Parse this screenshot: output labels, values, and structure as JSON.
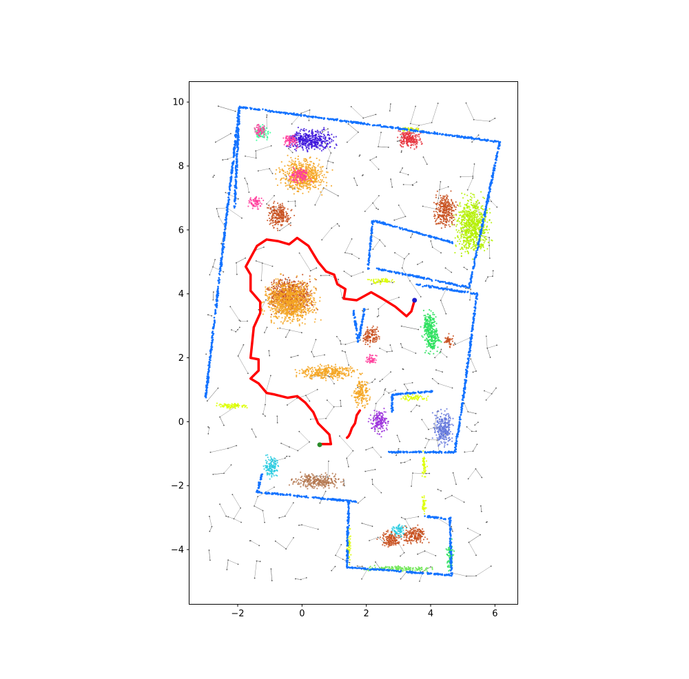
{
  "chart_data": {
    "type": "scatter",
    "title": "",
    "xlabel": "",
    "ylabel": "",
    "xlim": [
      -3.5,
      6.7
    ],
    "ylim": [
      -5.7,
      10.65
    ],
    "xticks": [
      -2,
      0,
      2,
      4,
      6
    ],
    "yticks": [
      -4,
      -2,
      0,
      2,
      4,
      6,
      8,
      10
    ],
    "xtick_labels": [
      "−2",
      "0",
      "2",
      "4",
      "6"
    ],
    "ytick_labels": [
      "−4",
      "−2",
      "0",
      "2",
      "4",
      "6",
      "8",
      "10"
    ],
    "grid": false,
    "legend": "none",
    "colors": {
      "wall": "#1473ff",
      "path": "#ff0000",
      "graph": "#555555",
      "accent_yellow": "#ddff00",
      "accent_orange": "#f5a623",
      "accent_brown": "#c8501e",
      "accent_purple": "#3c14dc",
      "accent_pink": "#ff3c9b",
      "accent_green": "#28e15a",
      "accent_red": "#e6323c"
    },
    "series": [
      {
        "role": "planned-path",
        "color": "#ff0000",
        "x": [
          3.5,
          3.4,
          3.25,
          2.9,
          2.5,
          2.15,
          1.7,
          1.3,
          1.35,
          1.1,
          1.0,
          0.75,
          0.5,
          0.2,
          -0.15,
          -0.4,
          -0.75,
          -1.1,
          -1.4,
          -1.75,
          -1.6,
          -1.6,
          -1.3,
          -1.3,
          -1.5,
          -1.6,
          -1.35,
          -1.35,
          -1.6,
          -1.35,
          -1.1,
          -0.85,
          -0.45,
          -0.15,
          0.1,
          0.35,
          0.5,
          0.85,
          0.9,
          0.55
        ],
        "y": [
          3.8,
          3.45,
          3.3,
          3.6,
          3.85,
          4.05,
          3.8,
          3.85,
          4.15,
          4.3,
          4.6,
          4.7,
          5.0,
          5.5,
          5.75,
          5.55,
          5.65,
          5.7,
          5.5,
          4.85,
          4.6,
          4.1,
          3.75,
          3.4,
          2.95,
          2.0,
          1.95,
          1.6,
          1.35,
          1.2,
          0.9,
          0.85,
          0.75,
          0.8,
          0.6,
          0.3,
          -0.05,
          -0.4,
          -0.7,
          -0.7
        ]
      },
      {
        "role": "path-segment",
        "color": "#ff0000",
        "x": [
          1.8,
          1.7,
          1.65,
          1.55,
          1.5,
          1.45,
          1.4
        ],
        "y": [
          0.35,
          0.2,
          -0.05,
          -0.2,
          -0.35,
          -0.45,
          -0.5
        ]
      },
      {
        "role": "goal-marker",
        "color": "#1e1ecc",
        "x": [
          3.5
        ],
        "y": [
          3.8
        ]
      },
      {
        "role": "start-marker",
        "color": "#2a8c2a",
        "x": [
          0.55
        ],
        "y": [
          -0.72
        ]
      }
    ],
    "walls": [
      [
        [
          -1.95,
          9.85
        ],
        [
          -3.0,
          0.75
        ]
      ],
      [
        [
          -1.95,
          9.85
        ],
        [
          6.15,
          8.75
        ]
      ],
      [
        [
          6.15,
          8.75
        ],
        [
          5.2,
          4.2
        ]
      ],
      [
        [
          5.45,
          4.05
        ],
        [
          5.0,
          0.6
        ]
      ],
      [
        [
          5.0,
          0.6
        ],
        [
          4.75,
          -0.95
        ]
      ],
      [
        [
          4.75,
          -0.95
        ],
        [
          2.7,
          -0.95
        ]
      ],
      [
        [
          1.6,
          3.5
        ],
        [
          1.75,
          2.5
        ]
      ],
      [
        [
          1.75,
          2.5
        ],
        [
          1.95,
          3.55
        ]
      ],
      [
        [
          2.2,
          6.3
        ],
        [
          2.05,
          4.75
        ]
      ],
      [
        [
          2.2,
          6.3
        ],
        [
          4.7,
          5.6
        ]
      ],
      [
        [
          2.3,
          4.8
        ],
        [
          5.2,
          4.2
        ]
      ],
      [
        [
          3.55,
          4.3
        ],
        [
          5.4,
          4.0
        ]
      ],
      [
        [
          2.8,
          0.85
        ],
        [
          2.8,
          0.3
        ]
      ],
      [
        [
          2.8,
          0.85
        ],
        [
          4.05,
          0.95
        ]
      ],
      [
        [
          -1.25,
          -1.65
        ],
        [
          -1.4,
          -2.2
        ]
      ],
      [
        [
          -1.4,
          -2.2
        ],
        [
          1.7,
          -2.5
        ]
      ],
      [
        [
          1.45,
          -2.5
        ],
        [
          1.4,
          -4.55
        ]
      ],
      [
        [
          1.4,
          -4.55
        ],
        [
          4.65,
          -4.8
        ]
      ],
      [
        [
          4.65,
          -4.8
        ],
        [
          4.6,
          -3.0
        ]
      ],
      [
        [
          4.5,
          -3.05
        ],
        [
          3.8,
          -2.95
        ]
      ],
      [
        [
          -1.95,
          9.8
        ],
        [
          -2.1,
          6.7
        ]
      ]
    ],
    "object_clusters": [
      {
        "color": "#3cff9b",
        "x": -1.25,
        "y": 9.05,
        "rx": 0.3,
        "ry": 0.3
      },
      {
        "color": "#ff3c9b",
        "x": -1.3,
        "y": 9.1,
        "rx": 0.25,
        "ry": 0.25
      },
      {
        "color": "#3c14dc",
        "x": 0.25,
        "y": 8.8,
        "rx": 1.0,
        "ry": 0.45
      },
      {
        "color": "#ff3c9b",
        "x": -0.35,
        "y": 8.8,
        "rx": 0.3,
        "ry": 0.3
      },
      {
        "color": "#f5a623",
        "x": 0.05,
        "y": 7.7,
        "rx": 0.95,
        "ry": 0.7
      },
      {
        "color": "#ff3c9b",
        "x": -0.05,
        "y": 7.7,
        "rx": 0.4,
        "ry": 0.35
      },
      {
        "color": "#ff3c9b",
        "x": -1.45,
        "y": 6.85,
        "rx": 0.3,
        "ry": 0.25
      },
      {
        "color": "#c8501e",
        "x": -0.7,
        "y": 6.45,
        "rx": 0.5,
        "ry": 0.5
      },
      {
        "color": "#e6323c",
        "x": 3.35,
        "y": 8.85,
        "rx": 0.55,
        "ry": 0.4
      },
      {
        "color": "#c8501e",
        "x": 4.45,
        "y": 6.6,
        "rx": 0.45,
        "ry": 0.7
      },
      {
        "color": "#b4f000",
        "x": 5.3,
        "y": 6.15,
        "rx": 0.7,
        "ry": 1.2
      },
      {
        "color": "#c8501e",
        "x": -0.35,
        "y": 3.95,
        "rx": 0.95,
        "ry": 0.75
      },
      {
        "color": "#f5a623",
        "x": -0.35,
        "y": 3.75,
        "rx": 1.05,
        "ry": 0.9
      },
      {
        "color": "#c8501e",
        "x": 2.15,
        "y": 2.7,
        "rx": 0.35,
        "ry": 0.4
      },
      {
        "color": "#28e15a",
        "x": 4.05,
        "y": 2.55,
        "rx": 0.35,
        "ry": 0.55
      },
      {
        "color": "#c8501e",
        "x": 4.55,
        "y": 2.55,
        "rx": 0.2,
        "ry": 0.25
      },
      {
        "color": "#28e15a",
        "x": 3.95,
        "y": 3.1,
        "rx": 0.3,
        "ry": 0.5
      },
      {
        "color": "#f5a623",
        "x": 0.8,
        "y": 1.55,
        "rx": 1.3,
        "ry": 0.3
      },
      {
        "color": "#f5a623",
        "x": 1.85,
        "y": 0.9,
        "rx": 0.35,
        "ry": 0.55
      },
      {
        "color": "#ff3c9b",
        "x": 2.15,
        "y": 1.95,
        "rx": 0.25,
        "ry": 0.2
      },
      {
        "color": "#9b30dc",
        "x": 2.4,
        "y": 0.0,
        "rx": 0.35,
        "ry": 0.5
      },
      {
        "color": "#6478dc",
        "x": 4.4,
        "y": -0.2,
        "rx": 0.4,
        "ry": 0.75
      },
      {
        "color": "#2acbe0",
        "x": -0.95,
        "y": -1.4,
        "rx": 0.3,
        "ry": 0.5
      },
      {
        "color": "#b47850",
        "x": 0.5,
        "y": -1.85,
        "rx": 1.05,
        "ry": 0.3
      },
      {
        "color": "#c8501e",
        "x": 2.75,
        "y": -3.7,
        "rx": 0.45,
        "ry": 0.35
      },
      {
        "color": "#c8501e",
        "x": 3.5,
        "y": -3.55,
        "rx": 0.5,
        "ry": 0.4
      },
      {
        "color": "#2acbe0",
        "x": 3.0,
        "y": -3.4,
        "rx": 0.3,
        "ry": 0.25
      },
      {
        "color": "#ddff00",
        "x": -2.15,
        "y": 0.5,
        "rx": 0.75,
        "ry": 0.12
      },
      {
        "color": "#ddff00",
        "x": 2.5,
        "y": 4.4,
        "rx": 0.6,
        "ry": 0.1
      },
      {
        "color": "#ddff00",
        "x": 3.5,
        "y": 0.75,
        "rx": 0.55,
        "ry": 0.12
      },
      {
        "color": "#ddff00",
        "x": 3.8,
        "y": -1.4,
        "rx": 0.1,
        "ry": 0.55
      },
      {
        "color": "#ddff00",
        "x": 3.8,
        "y": -2.6,
        "rx": 0.1,
        "ry": 0.4
      },
      {
        "color": "#ddff00",
        "x": 3.4,
        "y": 9.15,
        "rx": 0.5,
        "ry": 0.1
      },
      {
        "color": "#ddff00",
        "x": 1.45,
        "y": -3.9,
        "rx": 0.1,
        "ry": 0.7
      },
      {
        "color": "#6ee655",
        "x": 3.0,
        "y": -4.6,
        "rx": 1.4,
        "ry": 0.12
      },
      {
        "color": "#28e15a",
        "x": 4.6,
        "y": -4.2,
        "rx": 0.15,
        "ry": 0.6
      }
    ],
    "graph_regions": [
      {
        "x": [
          -3.0,
          6.1
        ],
        "y": [
          -5.0,
          10.0
        ]
      }
    ]
  }
}
